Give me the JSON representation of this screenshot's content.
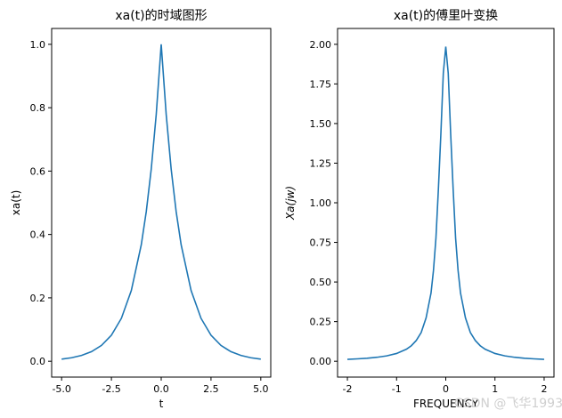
{
  "colors": {
    "line": "#1f77b4",
    "axes": "#000000",
    "watermark": "#cfcfcf"
  },
  "watermark": "CSDN @飞华1993",
  "chart_data": [
    {
      "type": "line",
      "title": "xa(t)的时域图形",
      "xlabel": "t",
      "ylabel": "xa(t)",
      "xlim": [
        -5.5,
        5.5
      ],
      "ylim": [
        -0.05,
        1.05
      ],
      "xticks": [
        -5.0,
        -2.5,
        0.0,
        2.5,
        5.0
      ],
      "xtick_labels": [
        "-5.0",
        "-2.5",
        "0.0",
        "2.5",
        "5.0"
      ],
      "yticks": [
        0.0,
        0.2,
        0.4,
        0.6,
        0.8,
        1.0
      ],
      "ytick_labels": [
        "0.0",
        "0.2",
        "0.4",
        "0.6",
        "0.8",
        "1.0"
      ],
      "grid": false,
      "series": [
        {
          "x": [
            -5,
            -4.5,
            -4,
            -3.5,
            -3,
            -2.5,
            -2,
            -1.5,
            -1,
            -0.75,
            -0.5,
            -0.25,
            0,
            0.25,
            0.5,
            0.75,
            1,
            1.5,
            2,
            2.5,
            3,
            3.5,
            4,
            4.5,
            5
          ],
          "y": [
            0.0067,
            0.0111,
            0.0183,
            0.0302,
            0.0498,
            0.0821,
            0.1353,
            0.2231,
            0.3679,
            0.4724,
            0.6065,
            0.7788,
            1.0,
            0.7788,
            0.6065,
            0.4724,
            0.3679,
            0.2231,
            0.1353,
            0.0821,
            0.0498,
            0.0302,
            0.0183,
            0.0111,
            0.0067
          ]
        }
      ]
    },
    {
      "type": "line",
      "title": "xa(t)的傅里叶变换",
      "xlabel": "FREQUENCY",
      "ylabel": "Xa(jw)",
      "xlim": [
        -2.2,
        2.2
      ],
      "ylim": [
        -0.1,
        2.1
      ],
      "xticks": [
        -2,
        -1,
        0,
        1,
        2
      ],
      "xtick_labels": [
        "-2",
        "-1",
        "0",
        "1",
        "2"
      ],
      "yticks": [
        0.0,
        0.25,
        0.5,
        0.75,
        1.0,
        1.25,
        1.5,
        1.75,
        2.0
      ],
      "ytick_labels": [
        "0.00",
        "0.25",
        "0.50",
        "0.75",
        "1.00",
        "1.25",
        "1.50",
        "1.75",
        "2.00"
      ],
      "grid": false,
      "series": [
        {
          "x": [
            -2,
            -1.8,
            -1.6,
            -1.4,
            -1.2,
            -1,
            -0.8,
            -0.7,
            -0.6,
            -0.5,
            -0.4,
            -0.3,
            -0.25,
            -0.2,
            -0.15,
            -0.1,
            -0.05,
            0,
            0.05,
            0.1,
            0.15,
            0.2,
            0.25,
            0.3,
            0.4,
            0.5,
            0.6,
            0.7,
            0.8,
            1,
            1.2,
            1.4,
            1.6,
            1.8,
            2
          ],
          "y": [
            0.012,
            0.015,
            0.019,
            0.025,
            0.034,
            0.049,
            0.076,
            0.098,
            0.131,
            0.181,
            0.274,
            0.43,
            0.573,
            0.776,
            1.086,
            1.433,
            1.818,
            1.985,
            1.818,
            1.433,
            1.086,
            0.776,
            0.573,
            0.43,
            0.274,
            0.181,
            0.131,
            0.098,
            0.076,
            0.049,
            0.034,
            0.025,
            0.019,
            0.015,
            0.012
          ]
        }
      ]
    }
  ]
}
